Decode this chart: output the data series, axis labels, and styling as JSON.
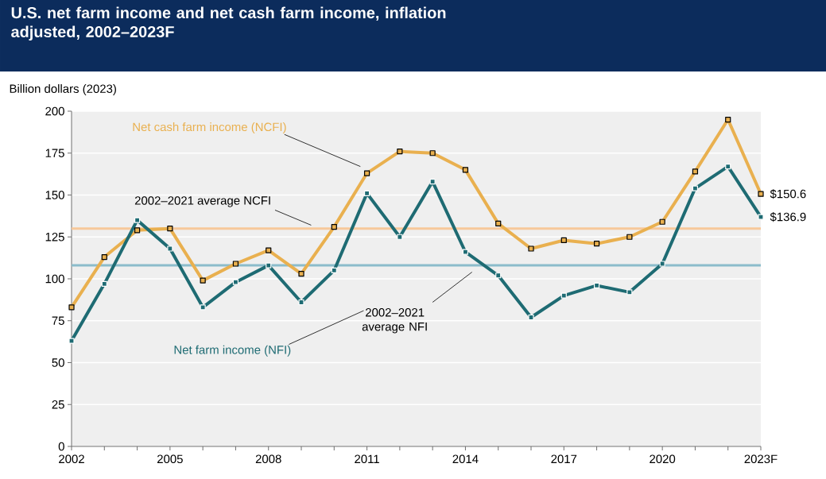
{
  "chart_data": {
    "type": "line",
    "title": "U.S. net farm income and net cash farm income, inflation adjusted, 2002–2023F",
    "ylabel": "Billion dollars (2023)",
    "categories": [
      "2002",
      null,
      null,
      "2005",
      null,
      null,
      "2008",
      null,
      null,
      "2011",
      null,
      null,
      "2014",
      null,
      null,
      "2017",
      null,
      null,
      "2020",
      null,
      null,
      "2023F"
    ],
    "series": [
      {
        "name": "Net cash farm income (NCFI)",
        "color": "#e9b04f",
        "values": [
          83,
          113,
          129,
          130,
          99,
          109,
          117,
          103,
          131,
          163,
          176,
          175,
          165,
          133,
          118,
          123,
          121,
          125,
          134,
          164,
          195,
          150.6
        ],
        "value_labels": [
          null,
          null,
          null,
          null,
          null,
          null,
          null,
          null,
          null,
          null,
          null,
          null,
          null,
          null,
          null,
          null,
          null,
          null,
          null,
          null,
          null,
          "$150.6"
        ]
      },
      {
        "name": "Net farm income (NFI)",
        "color": "#1e6b73",
        "values": [
          63,
          97,
          135,
          118,
          83,
          98,
          108,
          86,
          105,
          151,
          125,
          158,
          116,
          102,
          77,
          90,
          96,
          92,
          109,
          154,
          167,
          136.9
        ],
        "value_labels": [
          null,
          null,
          null,
          null,
          null,
          null,
          null,
          null,
          null,
          null,
          null,
          null,
          null,
          null,
          null,
          null,
          null,
          null,
          null,
          null,
          null,
          "$136.9"
        ]
      }
    ],
    "ylim": [
      0,
      200
    ],
    "yticks": [
      0,
      25,
      50,
      75,
      100,
      125,
      150,
      175,
      200
    ],
    "ref_lines": [
      {
        "axis": "y",
        "value": 130,
        "label": "2002–2021 average NCFI",
        "color": "#f7c89a"
      },
      {
        "axis": "y",
        "value": 108,
        "label": "2002–2021 average NFI",
        "color": "#8bbccb"
      }
    ],
    "grid": "y",
    "marker": "square",
    "line_style": "solid"
  }
}
